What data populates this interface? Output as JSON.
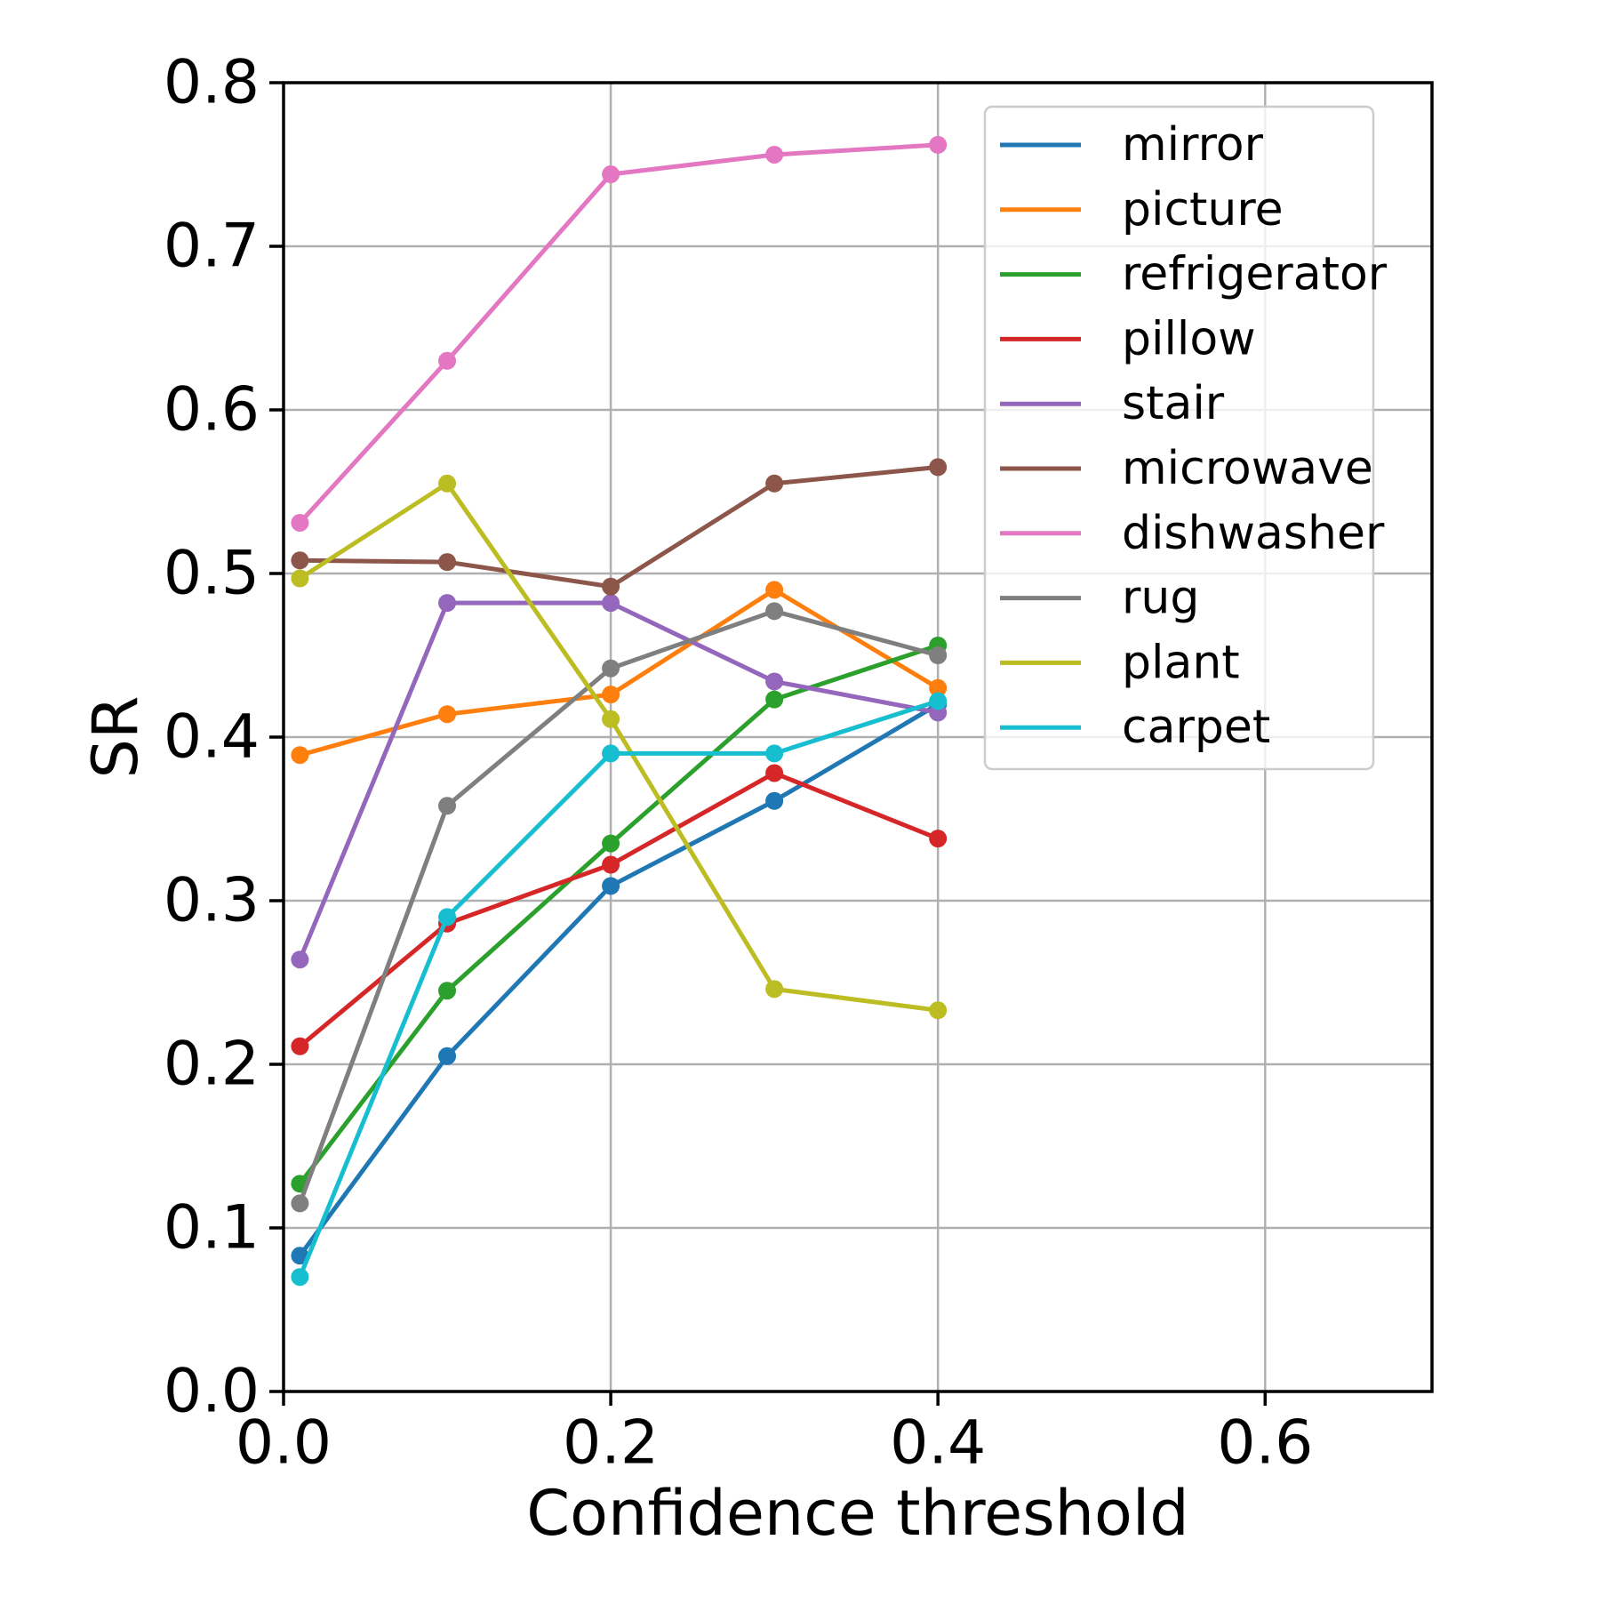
{
  "figure": {
    "background": "#ffffff",
    "title": ""
  },
  "chart_data": {
    "type": "line",
    "title": "",
    "xlabel": "Confidence threshold",
    "ylabel": "SR",
    "x": [
      0.01,
      0.1,
      0.2,
      0.3,
      0.4
    ],
    "series": [
      {
        "name": "mirror",
        "color": "#1f77b4",
        "values": [
          0.083,
          0.205,
          0.309,
          0.361,
          0.42
        ]
      },
      {
        "name": "picture",
        "color": "#ff7f0e",
        "values": [
          0.389,
          0.414,
          0.426,
          0.49,
          0.43
        ]
      },
      {
        "name": "refrigerator",
        "color": "#2ca02c",
        "values": [
          0.127,
          0.245,
          0.335,
          0.423,
          0.456
        ]
      },
      {
        "name": "pillow",
        "color": "#d62728",
        "values": [
          0.211,
          0.286,
          0.322,
          0.378,
          0.338
        ]
      },
      {
        "name": "stair",
        "color": "#9467bd",
        "values": [
          0.264,
          0.482,
          0.482,
          0.434,
          0.415
        ]
      },
      {
        "name": "microwave",
        "color": "#8c564b",
        "values": [
          0.508,
          0.507,
          0.492,
          0.555,
          0.565
        ]
      },
      {
        "name": "dishwasher",
        "color": "#e377c2",
        "values": [
          0.531,
          0.63,
          0.744,
          0.756,
          0.762
        ]
      },
      {
        "name": "rug",
        "color": "#7f7f7f",
        "values": [
          0.115,
          0.358,
          0.442,
          0.477,
          0.45
        ]
      },
      {
        "name": "plant",
        "color": "#bcbd22",
        "values": [
          0.497,
          0.555,
          0.411,
          0.246,
          0.233
        ]
      },
      {
        "name": "carpet",
        "color": "#17becf",
        "values": [
          0.07,
          0.29,
          0.39,
          0.39,
          0.422
        ]
      }
    ],
    "xlim": [
      0.0,
      0.702
    ],
    "ylim": [
      0.0,
      0.8
    ],
    "xticks": {
      "values": [
        0.0,
        0.2,
        0.4,
        0.6
      ],
      "labels": [
        "0.0",
        "0.2",
        "0.4",
        "0.6"
      ]
    },
    "yticks": {
      "values": [
        0.0,
        0.1,
        0.2,
        0.3,
        0.4,
        0.5,
        0.6,
        0.7,
        0.8
      ],
      "labels": [
        "0.0",
        "0.1",
        "0.2",
        "0.3",
        "0.4",
        "0.5",
        "0.6",
        "0.7",
        "0.8"
      ]
    },
    "grid": true,
    "grid_color": "#b0b0b0",
    "marker": "o",
    "legend": {
      "position": "upper right",
      "border_color": "#cccccc",
      "entries": [
        "mirror",
        "picture",
        "refrigerator",
        "pillow",
        "stair",
        "microwave",
        "dishwasher",
        "rug",
        "plant",
        "carpet"
      ]
    }
  }
}
